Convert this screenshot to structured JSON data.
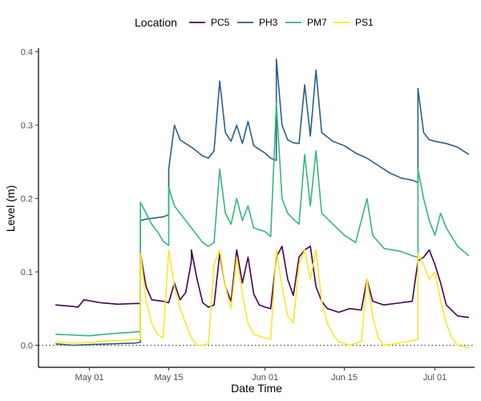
{
  "chart_data": {
    "type": "line",
    "xlabel": "Date Time",
    "ylabel": "Level (m)",
    "x_axis": {
      "type": "date",
      "range": [
        "2023-04-22",
        "2023-07-08"
      ],
      "ticks": [
        {
          "date": "2023-05-01",
          "label": "May 01"
        },
        {
          "date": "2023-05-15",
          "label": "May 15"
        },
        {
          "date": "2023-06-01",
          "label": "Jun 01"
        },
        {
          "date": "2023-06-15",
          "label": "Jun 15"
        },
        {
          "date": "2023-07-01",
          "label": "Jul 01"
        }
      ]
    },
    "y_axis": {
      "range": [
        -0.03,
        0.405
      ],
      "ticks": [
        0.0,
        0.1,
        0.2,
        0.3,
        0.4
      ],
      "tick_labels": [
        "0.0",
        "0.1",
        "0.2",
        "0.3",
        "0.4"
      ]
    },
    "reference_line": {
      "y": 0.0,
      "style": "dotted"
    },
    "grid": false,
    "legend": {
      "title": "Location",
      "position": "top"
    },
    "series": [
      {
        "name": "PC5",
        "color": "#440154",
        "points": [
          [
            "2023-04-25",
            0.055
          ],
          [
            "2023-04-28",
            0.053
          ],
          [
            "2023-04-29",
            0.052
          ],
          [
            "2023-04-30",
            0.062
          ],
          [
            "2023-05-03",
            0.058
          ],
          [
            "2023-05-06",
            0.056
          ],
          [
            "2023-05-09",
            0.057
          ],
          [
            "2023-05-10",
            0.057
          ],
          [
            "2023-05-10",
            0.125
          ],
          [
            "2023-05-11",
            0.08
          ],
          [
            "2023-05-12",
            0.062
          ],
          [
            "2023-05-14",
            0.06
          ],
          [
            "2023-05-15",
            0.058
          ],
          [
            "2023-05-16",
            0.085
          ],
          [
            "2023-05-17",
            0.062
          ],
          [
            "2023-05-18",
            0.072
          ],
          [
            "2023-05-19",
            0.115
          ],
          [
            "2023-05-19",
            0.13
          ],
          [
            "2023-05-20",
            0.09
          ],
          [
            "2023-05-21",
            0.058
          ],
          [
            "2023-05-22",
            0.052
          ],
          [
            "2023-05-23",
            0.055
          ],
          [
            "2023-05-24",
            0.125
          ],
          [
            "2023-05-25",
            0.08
          ],
          [
            "2023-05-26",
            0.06
          ],
          [
            "2023-05-27",
            0.13
          ],
          [
            "2023-05-28",
            0.085
          ],
          [
            "2023-05-29",
            0.12
          ],
          [
            "2023-05-30",
            0.07
          ],
          [
            "2023-05-31",
            0.055
          ],
          [
            "2023-06-01",
            0.052
          ],
          [
            "2023-06-02",
            0.05
          ],
          [
            "2023-06-03",
            0.12
          ],
          [
            "2023-06-04",
            0.135
          ],
          [
            "2023-06-05",
            0.09
          ],
          [
            "2023-06-06",
            0.068
          ],
          [
            "2023-06-07",
            0.12
          ],
          [
            "2023-06-08",
            0.13
          ],
          [
            "2023-06-09",
            0.135
          ],
          [
            "2023-06-10",
            0.08
          ],
          [
            "2023-06-11",
            0.06
          ],
          [
            "2023-06-12",
            0.05
          ],
          [
            "2023-06-14",
            0.045
          ],
          [
            "2023-06-16",
            0.05
          ],
          [
            "2023-06-18",
            0.048
          ],
          [
            "2023-06-19",
            0.09
          ],
          [
            "2023-06-20",
            0.06
          ],
          [
            "2023-06-22",
            0.055
          ],
          [
            "2023-06-25",
            0.058
          ],
          [
            "2023-06-27",
            0.06
          ],
          [
            "2023-06-28",
            0.115
          ],
          [
            "2023-06-29",
            0.12
          ],
          [
            "2023-06-30",
            0.13
          ],
          [
            "2023-07-01",
            0.11
          ],
          [
            "2023-07-02",
            0.085
          ],
          [
            "2023-07-03",
            0.055
          ],
          [
            "2023-07-05",
            0.04
          ],
          [
            "2023-07-07",
            0.038
          ]
        ]
      },
      {
        "name": "PH3",
        "color": "#2c5e8a",
        "points": [
          [
            "2023-04-25",
            0.002
          ],
          [
            "2023-04-28",
            0.0
          ],
          [
            "2023-05-01",
            0.001
          ],
          [
            "2023-05-05",
            0.002
          ],
          [
            "2023-05-09",
            0.003
          ],
          [
            "2023-05-10",
            0.004
          ],
          [
            "2023-05-10",
            0.17
          ],
          [
            "2023-05-11",
            0.172
          ],
          [
            "2023-05-14",
            0.175
          ],
          [
            "2023-05-15",
            0.178
          ],
          [
            "2023-05-15",
            0.24
          ],
          [
            "2023-05-16",
            0.3
          ],
          [
            "2023-05-17",
            0.28
          ],
          [
            "2023-05-19",
            0.27
          ],
          [
            "2023-05-21",
            0.258
          ],
          [
            "2023-05-22",
            0.255
          ],
          [
            "2023-05-23",
            0.265
          ],
          [
            "2023-05-24",
            0.36
          ],
          [
            "2023-05-25",
            0.29
          ],
          [
            "2023-05-26",
            0.278
          ],
          [
            "2023-05-27",
            0.3
          ],
          [
            "2023-05-28",
            0.275
          ],
          [
            "2023-05-29",
            0.305
          ],
          [
            "2023-05-30",
            0.272
          ],
          [
            "2023-06-01",
            0.262
          ],
          [
            "2023-06-02",
            0.255
          ],
          [
            "2023-06-03",
            0.252
          ],
          [
            "2023-06-03",
            0.39
          ],
          [
            "2023-06-04",
            0.3
          ],
          [
            "2023-06-05",
            0.28
          ],
          [
            "2023-06-06",
            0.276
          ],
          [
            "2023-06-07",
            0.275
          ],
          [
            "2023-06-08",
            0.355
          ],
          [
            "2023-06-09",
            0.285
          ],
          [
            "2023-06-10",
            0.375
          ],
          [
            "2023-06-11",
            0.29
          ],
          [
            "2023-06-13",
            0.278
          ],
          [
            "2023-06-15",
            0.272
          ],
          [
            "2023-06-17",
            0.262
          ],
          [
            "2023-06-19",
            0.255
          ],
          [
            "2023-06-21",
            0.245
          ],
          [
            "2023-06-23",
            0.235
          ],
          [
            "2023-06-25",
            0.228
          ],
          [
            "2023-06-27",
            0.225
          ],
          [
            "2023-06-28",
            0.222
          ],
          [
            "2023-06-28",
            0.35
          ],
          [
            "2023-06-29",
            0.29
          ],
          [
            "2023-06-30",
            0.28
          ],
          [
            "2023-07-01",
            0.278
          ],
          [
            "2023-07-03",
            0.275
          ],
          [
            "2023-07-05",
            0.27
          ],
          [
            "2023-07-07",
            0.26
          ]
        ]
      },
      {
        "name": "PM7",
        "color": "#35b779",
        "points": [
          [
            "2023-04-25",
            0.015
          ],
          [
            "2023-04-28",
            0.014
          ],
          [
            "2023-05-01",
            0.013
          ],
          [
            "2023-05-05",
            0.016
          ],
          [
            "2023-05-09",
            0.018
          ],
          [
            "2023-05-10",
            0.019
          ],
          [
            "2023-05-10",
            0.195
          ],
          [
            "2023-05-11",
            0.18
          ],
          [
            "2023-05-12",
            0.165
          ],
          [
            "2023-05-13",
            0.155
          ],
          [
            "2023-05-14",
            0.142
          ],
          [
            "2023-05-15",
            0.136
          ],
          [
            "2023-05-15",
            0.215
          ],
          [
            "2023-05-16",
            0.19
          ],
          [
            "2023-05-17",
            0.18
          ],
          [
            "2023-05-18",
            0.17
          ],
          [
            "2023-05-19",
            0.16
          ],
          [
            "2023-05-20",
            0.15
          ],
          [
            "2023-05-21",
            0.14
          ],
          [
            "2023-05-22",
            0.135
          ],
          [
            "2023-05-23",
            0.14
          ],
          [
            "2023-05-24",
            0.24
          ],
          [
            "2023-05-25",
            0.18
          ],
          [
            "2023-05-26",
            0.165
          ],
          [
            "2023-05-27",
            0.2
          ],
          [
            "2023-05-28",
            0.17
          ],
          [
            "2023-05-29",
            0.19
          ],
          [
            "2023-05-30",
            0.16
          ],
          [
            "2023-06-01",
            0.155
          ],
          [
            "2023-06-02",
            0.148
          ],
          [
            "2023-06-03",
            0.33
          ],
          [
            "2023-06-04",
            0.2
          ],
          [
            "2023-06-05",
            0.18
          ],
          [
            "2023-06-06",
            0.172
          ],
          [
            "2023-06-07",
            0.165
          ],
          [
            "2023-06-08",
            0.26
          ],
          [
            "2023-06-09",
            0.19
          ],
          [
            "2023-06-10",
            0.265
          ],
          [
            "2023-06-11",
            0.18
          ],
          [
            "2023-06-13",
            0.165
          ],
          [
            "2023-06-15",
            0.15
          ],
          [
            "2023-06-17",
            0.14
          ],
          [
            "2023-06-19",
            0.2
          ],
          [
            "2023-06-20",
            0.15
          ],
          [
            "2023-06-22",
            0.132
          ],
          [
            "2023-06-25",
            0.128
          ],
          [
            "2023-06-27",
            0.122
          ],
          [
            "2023-06-28",
            0.12
          ],
          [
            "2023-06-28",
            0.24
          ],
          [
            "2023-06-29",
            0.2
          ],
          [
            "2023-06-30",
            0.17
          ],
          [
            "2023-07-01",
            0.15
          ],
          [
            "2023-07-02",
            0.18
          ],
          [
            "2023-07-03",
            0.16
          ],
          [
            "2023-07-05",
            0.135
          ],
          [
            "2023-07-07",
            0.122
          ]
        ]
      },
      {
        "name": "PS1",
        "color": "#fde725",
        "points": [
          [
            "2023-04-25",
            0.005
          ],
          [
            "2023-04-28",
            0.003
          ],
          [
            "2023-05-01",
            0.004
          ],
          [
            "2023-05-05",
            0.006
          ],
          [
            "2023-05-09",
            0.008
          ],
          [
            "2023-05-10",
            0.008
          ],
          [
            "2023-05-10",
            0.125
          ],
          [
            "2023-05-11",
            0.06
          ],
          [
            "2023-05-12",
            0.03
          ],
          [
            "2023-05-13",
            0.015
          ],
          [
            "2023-05-14",
            0.01
          ],
          [
            "2023-05-15",
            0.13
          ],
          [
            "2023-05-16",
            0.08
          ],
          [
            "2023-05-17",
            0.05
          ],
          [
            "2023-05-18",
            0.03
          ],
          [
            "2023-05-19",
            0.01
          ],
          [
            "2023-05-20",
            0.0
          ],
          [
            "2023-05-21",
            0.0
          ],
          [
            "2023-05-22",
            0.002
          ],
          [
            "2023-05-23",
            0.11
          ],
          [
            "2023-05-24",
            0.13
          ],
          [
            "2023-05-25",
            0.08
          ],
          [
            "2023-05-26",
            0.05
          ],
          [
            "2023-05-27",
            0.12
          ],
          [
            "2023-05-28",
            0.07
          ],
          [
            "2023-05-29",
            0.03
          ],
          [
            "2023-05-30",
            0.015
          ],
          [
            "2023-06-01",
            0.01
          ],
          [
            "2023-06-02",
            0.008
          ],
          [
            "2023-06-03",
            0.13
          ],
          [
            "2023-06-04",
            0.08
          ],
          [
            "2023-06-05",
            0.04
          ],
          [
            "2023-06-06",
            0.03
          ],
          [
            "2023-06-07",
            0.11
          ],
          [
            "2023-06-08",
            0.13
          ],
          [
            "2023-06-09",
            0.09
          ],
          [
            "2023-06-10",
            0.13
          ],
          [
            "2023-06-11",
            0.06
          ],
          [
            "2023-06-12",
            0.03
          ],
          [
            "2023-06-13",
            0.015
          ],
          [
            "2023-06-14",
            0.005
          ],
          [
            "2023-06-16",
            0.0
          ],
          [
            "2023-06-18",
            0.005
          ],
          [
            "2023-06-19",
            0.09
          ],
          [
            "2023-06-20",
            0.04
          ],
          [
            "2023-06-21",
            0.01
          ],
          [
            "2023-06-22",
            0.0
          ],
          [
            "2023-06-24",
            0.002
          ],
          [
            "2023-06-26",
            0.005
          ],
          [
            "2023-06-28",
            0.008
          ],
          [
            "2023-06-28",
            0.125
          ],
          [
            "2023-06-29",
            0.11
          ],
          [
            "2023-06-30",
            0.09
          ],
          [
            "2023-07-01",
            0.1
          ],
          [
            "2023-07-02",
            0.06
          ],
          [
            "2023-07-03",
            0.03
          ],
          [
            "2023-07-04",
            0.01
          ],
          [
            "2023-07-05",
            0.0
          ],
          [
            "2023-07-07",
            -0.003
          ]
        ]
      }
    ]
  }
}
